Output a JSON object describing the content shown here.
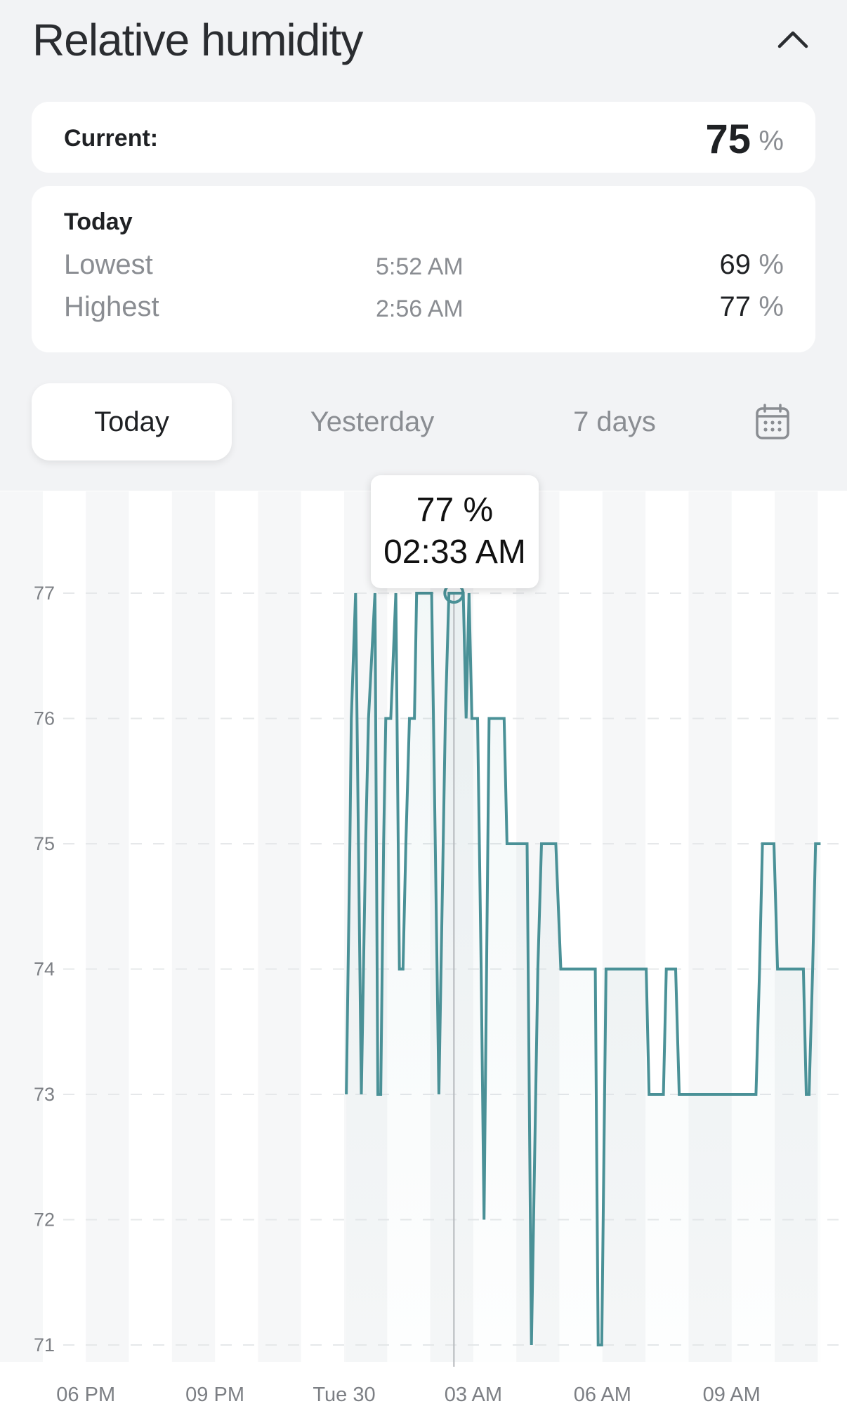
{
  "header": {
    "title": "Relative humidity",
    "collapse_icon": "chevron-up-icon"
  },
  "current": {
    "label": "Current:",
    "value": "75",
    "unit": "%"
  },
  "today": {
    "heading": "Today",
    "rows": [
      {
        "label": "Lowest",
        "time": "5:52 AM",
        "value": "69",
        "unit": "%"
      },
      {
        "label": "Highest",
        "time": "2:56 AM",
        "value": "77",
        "unit": "%"
      }
    ]
  },
  "tabs": [
    {
      "label": "Today",
      "active": true
    },
    {
      "label": "Yesterday",
      "active": false
    },
    {
      "label": "7 days",
      "active": false
    }
  ],
  "calendar_icon": "calendar-icon",
  "tooltip": {
    "value": "77 %",
    "time": "02:33 AM"
  },
  "colors": {
    "line": "#4a9197",
    "background": "#f2f3f5"
  },
  "chart_data": {
    "type": "line",
    "step": false,
    "ylim": [
      71,
      77
    ],
    "yticks": [
      "71",
      "72",
      "73",
      "74",
      "75",
      "76",
      "77"
    ],
    "xticks": [
      {
        "label": "06 PM",
        "time": "-06:00"
      },
      {
        "label": "09 PM",
        "time": "-03:00"
      },
      {
        "label": "Tue 30",
        "time": "00:00"
      },
      {
        "label": "03 AM",
        "time": "03:00"
      },
      {
        "label": "06 AM",
        "time": "06:00"
      },
      {
        "label": "09 AM",
        "time": "09:00"
      }
    ],
    "grid": true,
    "highlight": {
      "time": "02:33",
      "value": 77
    },
    "series": [
      {
        "points": [
          [
            "00:03",
            73
          ],
          [
            "00:08",
            75
          ],
          [
            "00:10",
            76
          ],
          [
            "00:16",
            77
          ],
          [
            "00:24",
            73
          ],
          [
            "00:30",
            75
          ],
          [
            "00:34",
            76
          ],
          [
            "00:43",
            77
          ],
          [
            "00:47",
            73
          ],
          [
            "00:51",
            73
          ],
          [
            "00:55",
            75
          ],
          [
            "00:58",
            76
          ],
          [
            "01:05",
            76
          ],
          [
            "01:12",
            77
          ],
          [
            "01:17",
            74
          ],
          [
            "01:22",
            74
          ],
          [
            "01:26",
            75
          ],
          [
            "01:31",
            76
          ],
          [
            "01:38",
            76
          ],
          [
            "01:41",
            77
          ],
          [
            "02:02",
            77
          ],
          [
            "02:12",
            73
          ],
          [
            "02:21",
            76
          ],
          [
            "02:26",
            77
          ],
          [
            "02:33",
            77
          ],
          [
            "02:46",
            77
          ],
          [
            "02:50",
            76
          ],
          [
            "02:54",
            77
          ],
          [
            "02:58",
            76
          ],
          [
            "03:06",
            76
          ],
          [
            "03:11",
            74
          ],
          [
            "03:15",
            72
          ],
          [
            "03:22",
            76
          ],
          [
            "03:43",
            76
          ],
          [
            "03:47",
            75
          ],
          [
            "04:15",
            75
          ],
          [
            "04:21",
            71
          ],
          [
            "04:30",
            74
          ],
          [
            "04:35",
            75
          ],
          [
            "04:55",
            75
          ],
          [
            "05:02",
            74
          ],
          [
            "05:50",
            74
          ],
          [
            "05:54",
            71
          ],
          [
            "05:59",
            71
          ],
          [
            "06:05",
            74
          ],
          [
            "07:01",
            74
          ],
          [
            "07:05",
            73
          ],
          [
            "07:25",
            73
          ],
          [
            "07:29",
            74
          ],
          [
            "07:42",
            74
          ],
          [
            "07:47",
            73
          ],
          [
            "09:34",
            73
          ],
          [
            "09:39",
            74
          ],
          [
            "09:43",
            75
          ],
          [
            "09:59",
            75
          ],
          [
            "10:04",
            74
          ],
          [
            "10:40",
            74
          ],
          [
            "10:44",
            73
          ],
          [
            "10:48",
            73
          ],
          [
            "10:53",
            74
          ],
          [
            "10:57",
            75
          ],
          [
            "11:04",
            75
          ]
        ]
      }
    ]
  }
}
